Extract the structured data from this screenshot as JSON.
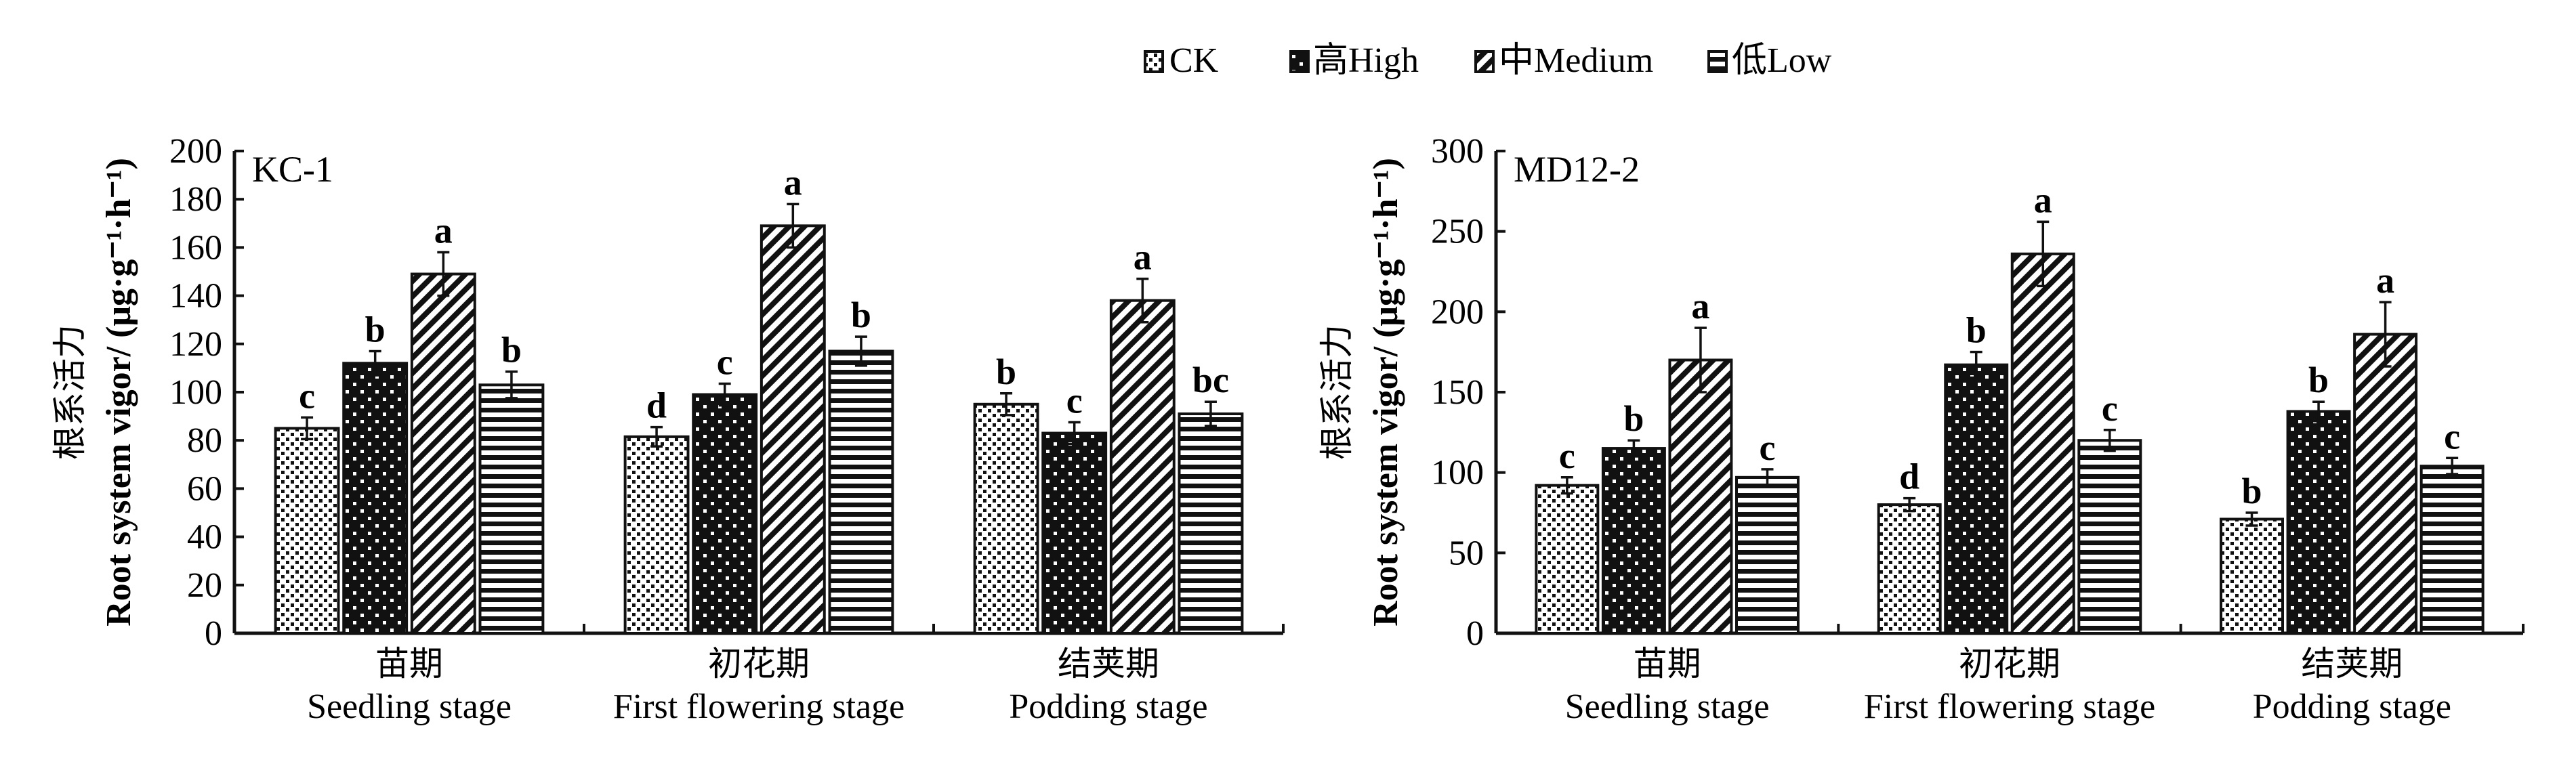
{
  "legend": [
    {
      "key": "CK",
      "label": "CK",
      "pattern": "fine-dots"
    },
    {
      "key": "High",
      "label": "高High",
      "pattern": "black-with-white-dots"
    },
    {
      "key": "Medium",
      "label": "中Medium",
      "pattern": "diagonal-stripes"
    },
    {
      "key": "Low",
      "label": "低Low",
      "pattern": "horizontal-stripes"
    }
  ],
  "chart_data": [
    {
      "type": "bar",
      "title": "KC-1",
      "ylabel_cn": "根系活力",
      "ylabel": "Root system vigor/ (μg·g⁻¹·h⁻¹)",
      "ylim": [
        0,
        200
      ],
      "yticks": [
        0,
        20,
        40,
        60,
        80,
        100,
        120,
        140,
        160,
        180,
        200
      ],
      "categories": [
        {
          "cn": "苗期",
          "en": "Seedling stage"
        },
        {
          "cn": "初花期",
          "en": "First flowering stage"
        },
        {
          "cn": "结荚期",
          "en": "Podding stage"
        }
      ],
      "series": [
        {
          "name": "CK",
          "values": [
            85,
            81.5,
            95
          ],
          "errors": [
            4.5,
            4,
            4.5
          ],
          "letters": [
            "c",
            "d",
            "b"
          ]
        },
        {
          "name": "High",
          "values": [
            112,
            99,
            83
          ],
          "errors": [
            5,
            4.5,
            4.5
          ],
          "letters": [
            "b",
            "c",
            "c"
          ]
        },
        {
          "name": "Medium",
          "values": [
            149,
            169,
            138
          ],
          "errors": [
            9,
            9,
            9
          ],
          "letters": [
            "a",
            "a",
            "a"
          ]
        },
        {
          "name": "Low",
          "values": [
            103,
            117,
            91
          ],
          "errors": [
            5.5,
            6,
            5
          ],
          "letters": [
            "b",
            "b",
            "bc"
          ]
        }
      ],
      "grid": false,
      "legend_position": "top-center"
    },
    {
      "type": "bar",
      "title": "MD12-2",
      "ylabel_cn": "根系活力",
      "ylabel": "Root system vigor/ (μg·g⁻¹·h⁻¹)",
      "ylim": [
        0,
        300
      ],
      "yticks": [
        0,
        50,
        100,
        150,
        200,
        250,
        300
      ],
      "categories": [
        {
          "cn": "苗期",
          "en": "Seedling stage"
        },
        {
          "cn": "初花期",
          "en": "First flowering stage"
        },
        {
          "cn": "结荚期",
          "en": "Podding stage"
        }
      ],
      "series": [
        {
          "name": "CK",
          "values": [
            92,
            80,
            71
          ],
          "errors": [
            5,
            4,
            4
          ],
          "letters": [
            "c",
            "d",
            "b"
          ]
        },
        {
          "name": "High",
          "values": [
            115,
            167,
            138
          ],
          "errors": [
            5,
            8,
            6
          ],
          "letters": [
            "b",
            "b",
            "b"
          ]
        },
        {
          "name": "Medium",
          "values": [
            170,
            236,
            186
          ],
          "errors": [
            20,
            20,
            20
          ],
          "letters": [
            "a",
            "a",
            "a"
          ]
        },
        {
          "name": "Low",
          "values": [
            97,
            120,
            104
          ],
          "errors": [
            5,
            6.5,
            5
          ],
          "letters": [
            "c",
            "c",
            "c"
          ]
        }
      ],
      "grid": false,
      "legend_position": "top-center"
    }
  ]
}
